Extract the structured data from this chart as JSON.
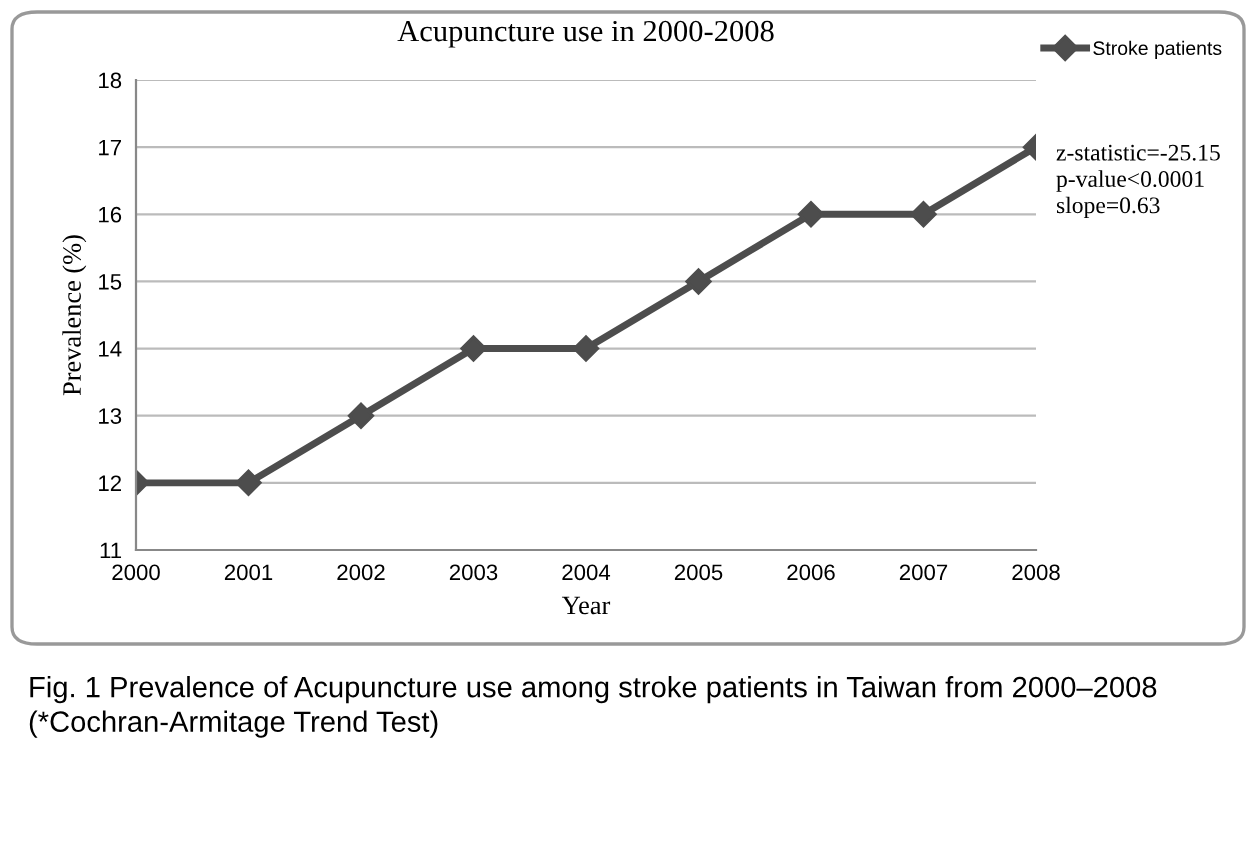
{
  "chart_data": {
    "type": "line",
    "title": "Acupuncture use in 2000-2008",
    "xlabel": "Year",
    "ylabel": "Prevalence (%)",
    "categories": [
      "2000",
      "2001",
      "2002",
      "2003",
      "2004",
      "2005",
      "2006",
      "2007",
      "2008"
    ],
    "series": [
      {
        "name": "Stroke patients",
        "color": "#4d4d4d",
        "values": [
          12,
          12,
          13,
          14,
          14,
          15,
          16,
          16,
          17
        ]
      }
    ],
    "ylim": [
      11,
      18
    ],
    "yticks": [
      11,
      12,
      13,
      14,
      15,
      16,
      17,
      18
    ],
    "grid": "y",
    "legend": "top right",
    "marker": "diamond",
    "line_style": "solid",
    "annotations": [
      "z-statistic=-25.15\np-value<0.0001\nslope=0.63",
      "Fig. 1 Prevalence of Acupuncture use among stroke patients in Taiwan from 2000–2008 (*Cochran-Armitage Trend Test)"
    ]
  }
}
